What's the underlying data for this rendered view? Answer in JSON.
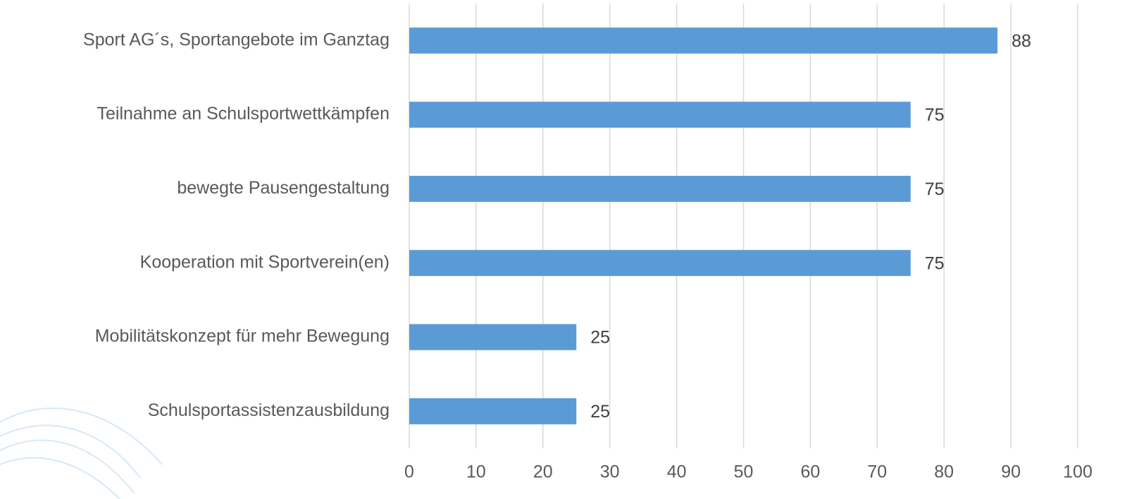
{
  "chart_data": {
    "type": "bar",
    "orientation": "horizontal",
    "categories": [
      "Sport AG´s, Sportangebote im Ganztag",
      "Teilnahme an Schulsportwettkämpfen",
      "bewegte Pausengestaltung",
      "Kooperation mit Sportverein(en)",
      "Mobilitätskonzept für mehr Bewegung",
      "Schulsportassistenzausbildung"
    ],
    "values": [
      88,
      75,
      75,
      75,
      25,
      25
    ],
    "color": "#5b9bd5",
    "xlim": [
      0,
      100
    ],
    "xticks": [
      0,
      10,
      20,
      30,
      40,
      50,
      60,
      70,
      80,
      90,
      100
    ],
    "grid": true
  }
}
